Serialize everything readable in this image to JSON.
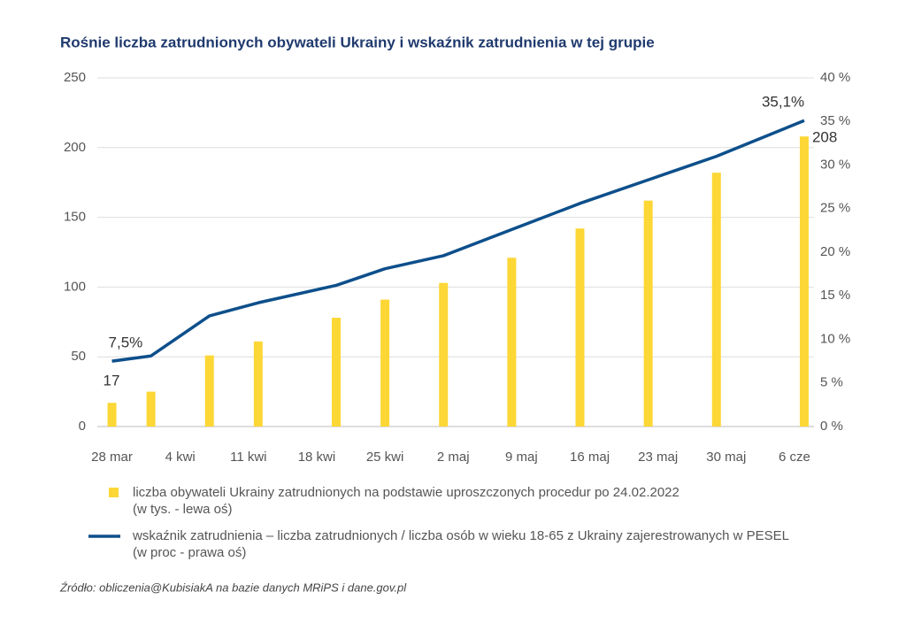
{
  "chart_data": {
    "type": "bar-line",
    "title": "Rośnie liczba zatrudnionych obywateli Ukrainy i wskaźnik zatrudnienia w tej grupie",
    "x": [
      0,
      4,
      10,
      15,
      23,
      28,
      34,
      41,
      48,
      55,
      62,
      71
    ],
    "xlim": [
      -1.5,
      72
    ],
    "xticks": [
      {
        "value": 0,
        "label": "28 mar"
      },
      {
        "value": 7,
        "label": "4 kwi"
      },
      {
        "value": 14,
        "label": "11 kwi"
      },
      {
        "value": 21,
        "label": "18 kwi"
      },
      {
        "value": 28,
        "label": "25 kwi"
      },
      {
        "value": 35,
        "label": "2 maj"
      },
      {
        "value": 42,
        "label": "9 maj"
      },
      {
        "value": 49,
        "label": "16 maj"
      },
      {
        "value": 56,
        "label": "23 maj"
      },
      {
        "value": 63,
        "label": "30 maj"
      },
      {
        "value": 70,
        "label": "6 cze"
      }
    ],
    "ylim": [
      0,
      250
    ],
    "yticks": [
      0,
      50,
      100,
      150,
      200,
      250
    ],
    "y2lim": [
      0,
      40
    ],
    "y2ticks": [
      {
        "value": 0,
        "label": "0 %"
      },
      {
        "value": 5,
        "label": "5 %"
      },
      {
        "value": 10,
        "label": "10 %"
      },
      {
        "value": 15,
        "label": "15 %"
      },
      {
        "value": 20,
        "label": "20 %"
      },
      {
        "value": 25,
        "label": "25 %"
      },
      {
        "value": 30,
        "label": "30 %"
      },
      {
        "value": 35,
        "label": "35 %"
      },
      {
        "value": 40,
        "label": "40 %"
      }
    ],
    "grid": true,
    "series": [
      {
        "name": "liczba obywateli Ukrainy zatrudnionych na podstawie uproszczonych procedur po 24.02.2022",
        "note": "(w tys. - lewa oś)",
        "kind": "bar",
        "color": "#fcd735",
        "values": [
          17,
          25,
          51,
          61,
          78,
          91,
          103,
          121,
          142,
          162,
          182,
          208
        ],
        "value_labels": [
          "17",
          null,
          null,
          null,
          null,
          null,
          null,
          null,
          null,
          null,
          null,
          "208"
        ]
      },
      {
        "name": "wskaźnik zatrudnienia – liczba zatrudnionych / liczba osób w wieku 18-65 z Ukrainy zajerestrowanych w PESEL",
        "note": "(w proc - prawa oś)",
        "kind": "line",
        "axis": "y2",
        "color": "#0d4f8b",
        "values": [
          7.5,
          8.1,
          12.7,
          14.2,
          16.2,
          18.1,
          19.6,
          22.6,
          25.6,
          28.3,
          31.0,
          35.1
        ],
        "value_labels": [
          "7,5%",
          null,
          null,
          null,
          null,
          null,
          null,
          null,
          null,
          null,
          null,
          "35,1%"
        ]
      }
    ],
    "source": "Źródło: obliczenia@KubisiakA na bazie danych MRiPS i dane.gov.pl"
  }
}
